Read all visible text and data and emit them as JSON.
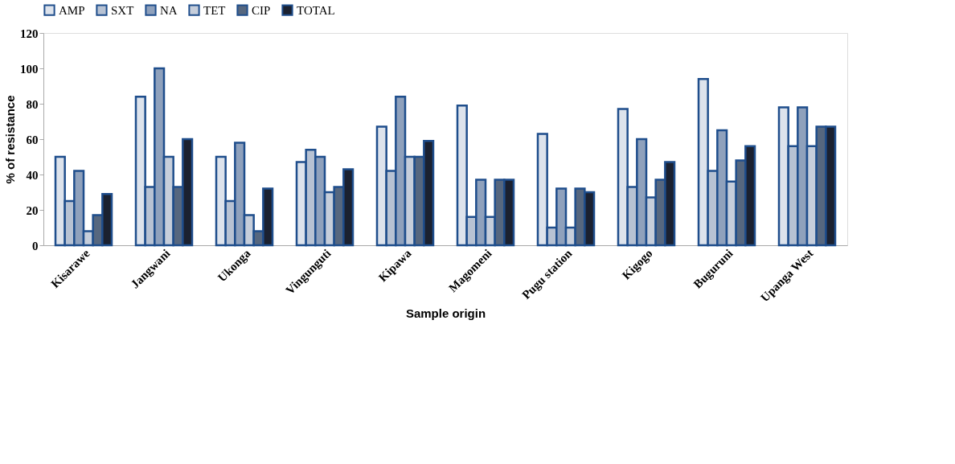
{
  "chart_data": {
    "type": "bar",
    "xlabel": "Sample origin",
    "ylabel": "% of resistance",
    "categories": [
      "Kisarawe",
      "Jangwani",
      "Ukonga",
      "Vingunguti",
      "Kipawa",
      "Magomeni",
      "Pugu station",
      "Kigogo",
      "Buguruni",
      "Upanga West"
    ],
    "series": [
      {
        "name": "AMP",
        "color": "#dde3ec",
        "values": [
          50,
          84,
          50,
          47,
          67,
          79,
          63,
          77,
          94,
          78
        ]
      },
      {
        "name": "SXT",
        "color": "#b7c2d3",
        "values": [
          25,
          33,
          25,
          54,
          42,
          16,
          10,
          33,
          42,
          56
        ]
      },
      {
        "name": "NA",
        "color": "#8fa1bc",
        "values": [
          42,
          100,
          58,
          50,
          84,
          37,
          32,
          60,
          65,
          78
        ]
      },
      {
        "name": "TET",
        "color": "#c6cedb",
        "values": [
          8,
          50,
          17,
          30,
          50,
          16,
          10,
          27,
          36,
          56
        ]
      },
      {
        "name": "CIP",
        "color": "#56677f",
        "values": [
          17,
          33,
          8,
          33,
          50,
          37,
          32,
          37,
          48,
          67
        ]
      },
      {
        "name": "TOTAL",
        "color": "#1b2130",
        "values": [
          29,
          60,
          32,
          43,
          59,
          37,
          30,
          47,
          56,
          67
        ]
      }
    ],
    "ylim": [
      0,
      120
    ],
    "yticks": [
      0,
      20,
      40,
      60,
      80,
      100,
      120
    ],
    "grid": false,
    "legend": "top"
  }
}
